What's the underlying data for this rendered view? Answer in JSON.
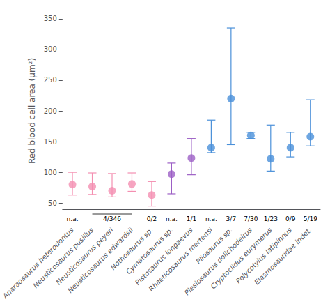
{
  "chart_data": {
    "type": "scatter",
    "categories": [
      "Anaraosaurus heterodontus",
      "Neusticosaurus pusillus",
      "Neusticosaurus peyeri",
      "Neusticosaurus edwardsii",
      "Nothosaurus sp.",
      "Cymatosaurus sp.",
      "Pistosaurus longaevus",
      "Rhaeticosaurus mertensi",
      "Pliosaurus sp.",
      "Plesiosaurus dolichodeirus",
      "Cryptoclidus eurymerus",
      "Polycotylus latipinnus",
      "Elasmosauridae indet."
    ],
    "values": [
      80,
      77,
      70,
      81,
      63,
      97,
      123,
      140,
      220,
      160,
      122,
      140,
      158
    ],
    "lower_err": [
      17,
      13,
      10,
      12,
      18,
      32,
      27,
      8,
      75,
      5,
      20,
      15,
      15
    ],
    "upper_err": [
      20,
      22,
      28,
      18,
      22,
      18,
      32,
      45,
      115,
      5,
      55,
      25,
      60
    ],
    "colors": [
      "#f48fb1",
      "#f48fb1",
      "#f48fb1",
      "#f48fb1",
      "#f48fb1",
      "#9c5fc5",
      "#9c5fc5",
      "#4a90d9",
      "#4a90d9",
      "#4a90d9",
      "#4a90d9",
      "#4a90d9",
      "#4a90d9"
    ],
    "sample_labels": [
      "n.a.",
      null,
      null,
      null,
      "0/2",
      "n.a.",
      "1/1",
      "n.a.",
      "3/7",
      "7/30",
      "1/23",
      "0/9",
      "5/19"
    ],
    "bracket": {
      "label": "4/346",
      "from": "Neusticosaurus pusillus",
      "to": "Neusticosaurus edwardsii"
    },
    "ylabel": "Red blood cell area (μm²)",
    "ylim": [
      40,
      360
    ],
    "yticks": [
      50,
      100,
      150,
      200,
      250,
      300,
      350
    ],
    "grid": false
  }
}
